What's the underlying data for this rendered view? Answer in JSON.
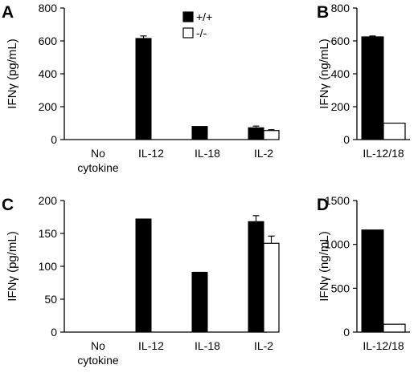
{
  "legend": [
    {
      "label": "+/+",
      "fill": "#000000"
    },
    {
      "label": "-/-",
      "fill": "#ffffff"
    }
  ],
  "chart_data": [
    {
      "panel": "A",
      "type": "bar",
      "ylabel": "IFNγ (pg/mL)",
      "ylim": [
        0,
        800
      ],
      "yticks": [
        0,
        200,
        400,
        600,
        800
      ],
      "categories": [
        [
          "No",
          "cytokine"
        ],
        [
          "IL-12"
        ],
        [
          "IL-18"
        ],
        [
          "IL-2"
        ]
      ],
      "series": [
        {
          "name": "+/+",
          "values": [
            0,
            615,
            80,
            72
          ],
          "errors": [
            0,
            15,
            0,
            10
          ]
        },
        {
          "name": "-/-",
          "values": [
            0,
            0,
            0,
            55
          ],
          "errors": [
            0,
            0,
            0,
            5
          ]
        }
      ]
    },
    {
      "panel": "B",
      "type": "bar",
      "ylabel": "IFNγ (ng/mL)",
      "ylim": [
        0,
        800
      ],
      "yticks": [
        0,
        200,
        400,
        600,
        800
      ],
      "categories": [
        [
          "IL-12/18"
        ]
      ],
      "series": [
        {
          "name": "+/+",
          "values": [
            625
          ],
          "errors": [
            5
          ]
        },
        {
          "name": "-/-",
          "values": [
            100
          ],
          "errors": [
            0
          ]
        }
      ]
    },
    {
      "panel": "C",
      "type": "bar",
      "ylabel": "IFNγ (pg/mL)",
      "ylim": [
        0,
        200
      ],
      "yticks": [
        0,
        50,
        100,
        150,
        200
      ],
      "categories": [
        [
          "No",
          "cytokine"
        ],
        [
          "IL-12"
        ],
        [
          "IL-18"
        ],
        [
          "IL-2"
        ]
      ],
      "series": [
        {
          "name": "+/+",
          "values": [
            0,
            172,
            91,
            168
          ],
          "errors": [
            0,
            0,
            0,
            9
          ]
        },
        {
          "name": "-/-",
          "values": [
            0,
            0,
            0,
            135
          ],
          "errors": [
            0,
            0,
            0,
            11
          ]
        }
      ]
    },
    {
      "panel": "D",
      "type": "bar",
      "ylabel": "IFNγ (ng/mL)",
      "ylim": [
        0,
        1500
      ],
      "yticks": [
        0,
        500,
        1000,
        1500
      ],
      "categories": [
        [
          "IL-12/18"
        ]
      ],
      "series": [
        {
          "name": "+/+",
          "values": [
            1165
          ],
          "errors": [
            0
          ]
        },
        {
          "name": "-/-",
          "values": [
            90
          ],
          "errors": [
            0
          ]
        }
      ]
    }
  ]
}
